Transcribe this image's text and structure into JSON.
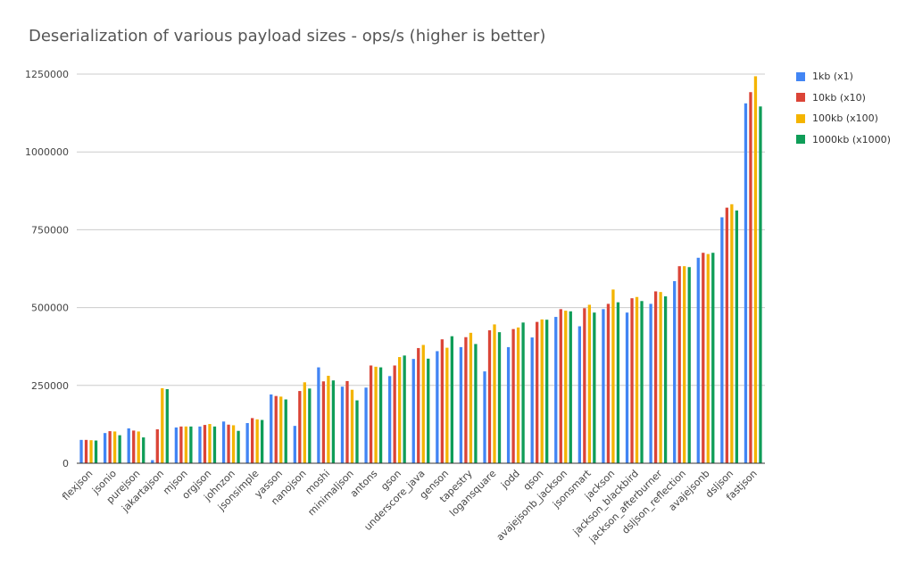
{
  "chart_data": {
    "type": "bar",
    "title": "Deserialization of various payload sizes  - ops/s (higher is better)",
    "xlabel": "",
    "ylabel": "",
    "ylim": [
      0,
      1250000
    ],
    "yticks": [
      0,
      250000,
      500000,
      750000,
      1000000,
      1250000
    ],
    "grid": true,
    "legend_position": "right",
    "categories": [
      "flexjson",
      "jsonio",
      "purejson",
      "jakartajson",
      "mjson",
      "orgjson",
      "johnzon",
      "jsonsimple",
      "yasson",
      "nanojson",
      "moshi",
      "minimaljson",
      "antons",
      "gson",
      "underscore_java",
      "genson",
      "tapestry",
      "logansquare",
      "jodd",
      "qson",
      "avajejsonb_jackson",
      "jsonsmart",
      "jackson",
      "jackson_blackbird",
      "jackson_afterburner",
      "dsljson_reflection",
      "avajejsonb",
      "dsljson",
      "fastjson"
    ],
    "series": [
      {
        "name": "1kb (x1)",
        "color": "#4285f4",
        "values": [
          75000,
          97000,
          112000,
          10000,
          115000,
          118000,
          134000,
          129000,
          221000,
          120000,
          308000,
          246000,
          243000,
          280000,
          335000,
          360000,
          373000,
          295000,
          373000,
          404000,
          470000,
          440000,
          495000,
          484000,
          512000,
          585000,
          660000,
          790000,
          1156000
        ]
      },
      {
        "name": "10kb (x10)",
        "color": "#db4437",
        "values": [
          75000,
          103000,
          105000,
          109000,
          118000,
          123000,
          124000,
          145000,
          216000,
          232000,
          263000,
          264000,
          314000,
          314000,
          370000,
          398000,
          405000,
          427000,
          431000,
          454000,
          495000,
          498000,
          512000,
          530000,
          552000,
          633000,
          676000,
          821000,
          1192000
        ]
      },
      {
        "name": "100kb (x100)",
        "color": "#f4b400",
        "values": [
          74000,
          102000,
          102000,
          241000,
          118000,
          126000,
          122000,
          141000,
          214000,
          260000,
          281000,
          236000,
          310000,
          341000,
          380000,
          371000,
          419000,
          446000,
          436000,
          462000,
          490000,
          509000,
          558000,
          534000,
          550000,
          633000,
          672000,
          832000,
          1243000
        ]
      },
      {
        "name": "1000kb (x1000)",
        "color": "#0f9d58",
        "values": [
          73000,
          90000,
          83000,
          238000,
          118000,
          118000,
          104000,
          139000,
          205000,
          240000,
          266000,
          202000,
          308000,
          346000,
          336000,
          408000,
          383000,
          421000,
          452000,
          461000,
          488000,
          484000,
          517000,
          521000,
          536000,
          630000,
          676000,
          812000,
          1146000
        ]
      }
    ]
  }
}
